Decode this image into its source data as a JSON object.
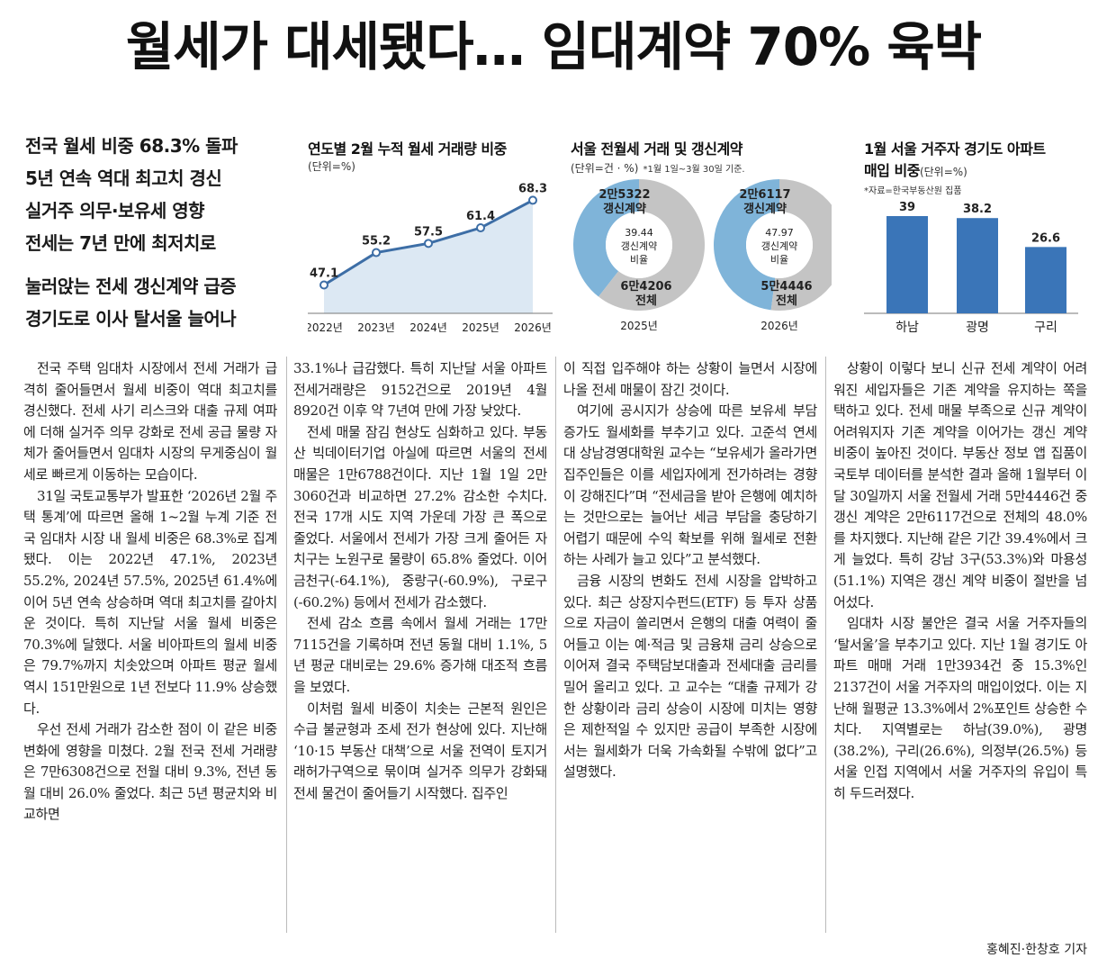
{
  "headline": "월세가 대세됐다… 임대계약 70% 육박",
  "subheads": [
    "전국 월세 비중 68.3% 돌파",
    "5년 연속 역대 최고치 경신",
    "실거주 의무·보유세 영향",
    "전세는 7년 만에 최저치로",
    "눌러앉는 전세 갱신계약 급증",
    "경기도로 이사 탈서울 늘어나"
  ],
  "chart_data": [
    {
      "type": "area",
      "title": "연도별 2월 누적 월세 거래량 비중",
      "unit": "(단위=%)",
      "categories": [
        "2022년",
        "2023년",
        "2024년",
        "2025년",
        "2026년"
      ],
      "values": [
        47.1,
        55.2,
        57.5,
        61.4,
        68.3
      ],
      "value_labels": [
        "47.1",
        "55.2",
        "57.5",
        "61.4",
        "68.3"
      ],
      "colors": {
        "line": "#3d6ea6",
        "fill": "#dce8f3"
      }
    },
    {
      "type": "pie",
      "title": "서울 전월세 거래 및 갱신계약",
      "unit": "(단위=건 · %)",
      "note": "*1월 1일~3월 30일 기준.",
      "donuts": [
        {
          "year": "2025년",
          "renewal_count": "2만5322",
          "renewal_label": "갱신계약",
          "total_count": "6만4206",
          "total_label": "전체",
          "center_value": "39.44",
          "center_line1": "갱신계약",
          "center_line2": "비율",
          "ratio": 39.44
        },
        {
          "year": "2026년",
          "renewal_count": "2만6117",
          "renewal_label": "갱신계약",
          "total_count": "5만4446",
          "total_label": "전체",
          "center_value": "47.97",
          "center_line1": "갱신계약",
          "center_line2": "비율",
          "ratio": 47.97
        }
      ],
      "colors": {
        "renewal": "#7fb4d9",
        "rest": "#c4c4c4"
      }
    },
    {
      "type": "bar",
      "title_line1": "1월 서울 거주자 경기도 아파트",
      "title_line2": "매입 비중",
      "unit": "(단위=%)",
      "source": "*자료=한국부동산원 집품",
      "categories": [
        "하남",
        "광명",
        "구리"
      ],
      "values": [
        39,
        38.2,
        26.6
      ],
      "value_labels": [
        "39",
        "38.2",
        "26.6"
      ],
      "colors": {
        "bar": "#3a75b8"
      }
    }
  ],
  "columns": [
    [
      {
        "t": "전국 주택 임대차 시장에서 전세 거래가 급격히 줄어들면서 월세 비중이 역대 최고치를 경신했다. 전세 사기 리스크와 대출 규제 여파에 더해 실거주 의무 강화로 전세 공급 물량 자체가 줄어들면서 임대차 시장의 무게중심이 월세로 빠르게 이동하는 모습이다."
      },
      {
        "t": "31일 국토교통부가 발표한 ‘2026년 2월 주택 통계’에 따르면 올해 1~2월 누계 기준 전국 임대차 시장 내 월세 비중은 68.3%로 집계됐다. 이는 2022년 47.1%, 2023년 55.2%, 2024년 57.5%, 2025년 61.4%에 이어 5년 연속 상승하며 역대 최고치를 갈아치운 것이다. 특히 지난달 서울 월세 비중은 70.3%에 달했다. 서울 비아파트의 월세 비중은 79.7%까지 치솟았으며 아파트 평균 월세 역시 151만원으로 1년 전보다 11.9% 상승했다."
      },
      {
        "t": "우선 전세 거래가 감소한 점이 이 같은 비중 변화에 영향을 미쳤다. 2월 전국 전세 거래량은 7만6308건으로 전월 대비 9.3%, 전년 동월 대비 26.0% 줄었다. 최근 5년 평균치와 비교하면"
      }
    ],
    [
      {
        "t": "33.1%나 급감했다. 특히 지난달 서울 아파트 전세거래량은 9152건으로 2019년 4월 8920건 이후 약 7년여 만에 가장 낮았다.",
        "cont": true
      },
      {
        "t": "전세 매물 잠김 현상도 심화하고 있다. 부동산 빅데이터기업 아실에 따르면 서울의 전세 매물은 1만6788건이다. 지난 1월 1일 2만3060건과 비교하면 27.2% 감소한 수치다. 전국 17개 시도 지역 가운데 가장 큰 폭으로 줄었다. 서울에서 전세가 가장 크게 줄어든 자치구는 노원구로 물량이 65.8% 줄었다. 이어 금천구(-64.1%), 중랑구(-60.9%), 구로구(-60.2%) 등에서 전세가 감소했다."
      },
      {
        "t": "전세 감소 흐름 속에서 월세 거래는 17만7115건을 기록하며 전년 동월 대비 1.1%, 5년 평균 대비로는 29.6% 증가해 대조적 흐름을 보였다."
      },
      {
        "t": "이처럼 월세 비중이 치솟는 근본적 원인은 수급 불균형과 조세 전가 현상에 있다. 지난해 ‘10·15 부동산 대책’으로 서울 전역이 토지거래허가구역으로 묶이며 실거주 의무가 강화돼 전세 물건이 줄어들기 시작했다. 집주인"
      }
    ],
    [
      {
        "t": "이 직접 입주해야 하는 상황이 늘면서 시장에 나올 전세 매물이 잠긴 것이다.",
        "cont": true
      },
      {
        "t": "여기에 공시지가 상승에 따른 보유세 부담 증가도 월세화를 부추기고 있다. 고준석 연세대 상남경영대학원 교수는 “보유세가 올라가면 집주인들은 이를 세입자에게 전가하려는 경향이 강해진다”며 “전세금을 받아 은행에 예치하는 것만으로는 늘어난 세금 부담을 충당하기 어렵기 때문에 수익 확보를 위해 월세로 전환하는 사례가 늘고 있다”고 분석했다."
      },
      {
        "t": "금융 시장의 변화도 전세 시장을 압박하고 있다. 최근 상장지수펀드(ETF) 등 투자 상품으로 자금이 쏠리면서 은행의 대출 여력이 줄어들고 이는 예·적금 및 금융채 금리 상승으로 이어져 결국 주택담보대출과 전세대출 금리를 밀어 올리고 있다. 고 교수는 “대출 규제가 강한 상황이라 금리 상승이 시장에 미치는 영향은 제한적일 수 있지만 공급이 부족한 시장에서는 월세화가 더욱 가속화될 수밖에 없다”고 설명했다."
      }
    ],
    [
      {
        "t": "상황이 이렇다 보니 신규 전세 계약이 어려워진 세입자들은 기존 계약을 유지하는 쪽을 택하고 있다. 전세 매물 부족으로 신규 계약이 어려워지자 기존 계약을 이어가는 갱신 계약 비중이 높아진 것이다. 부동산 정보 앱 집품이 국토부 데이터를 분석한 결과 올해 1월부터 이달 30일까지 서울 전월세 거래 5만4446건 중 갱신 계약은 2만6117건으로 전체의 48.0%를 차지했다. 지난해 같은 기간 39.4%에서 크게 늘었다. 특히 강남 3구(53.3%)와 마용성(51.1%) 지역은 갱신 계약 비중이 절반을 넘어섰다."
      },
      {
        "t": "임대차 시장 불안은 결국 서울 거주자들의 ‘탈서울’을 부추기고 있다. 지난 1월 경기도 아파트 매매 거래 1만3934건 중 15.3%인 2137건이 서울 거주자의 매입이었다. 이는 지난해 월평균 13.3%에서 2%포인트 상승한 수치다. 지역별로는 하남(39.0%), 광명(38.2%), 구리(26.6%), 의정부(26.5%) 등 서울 인접 지역에서 서울 거주자의 유입이 특히 두드러졌다."
      }
    ]
  ],
  "byline": "홍혜진·한창호 기자"
}
